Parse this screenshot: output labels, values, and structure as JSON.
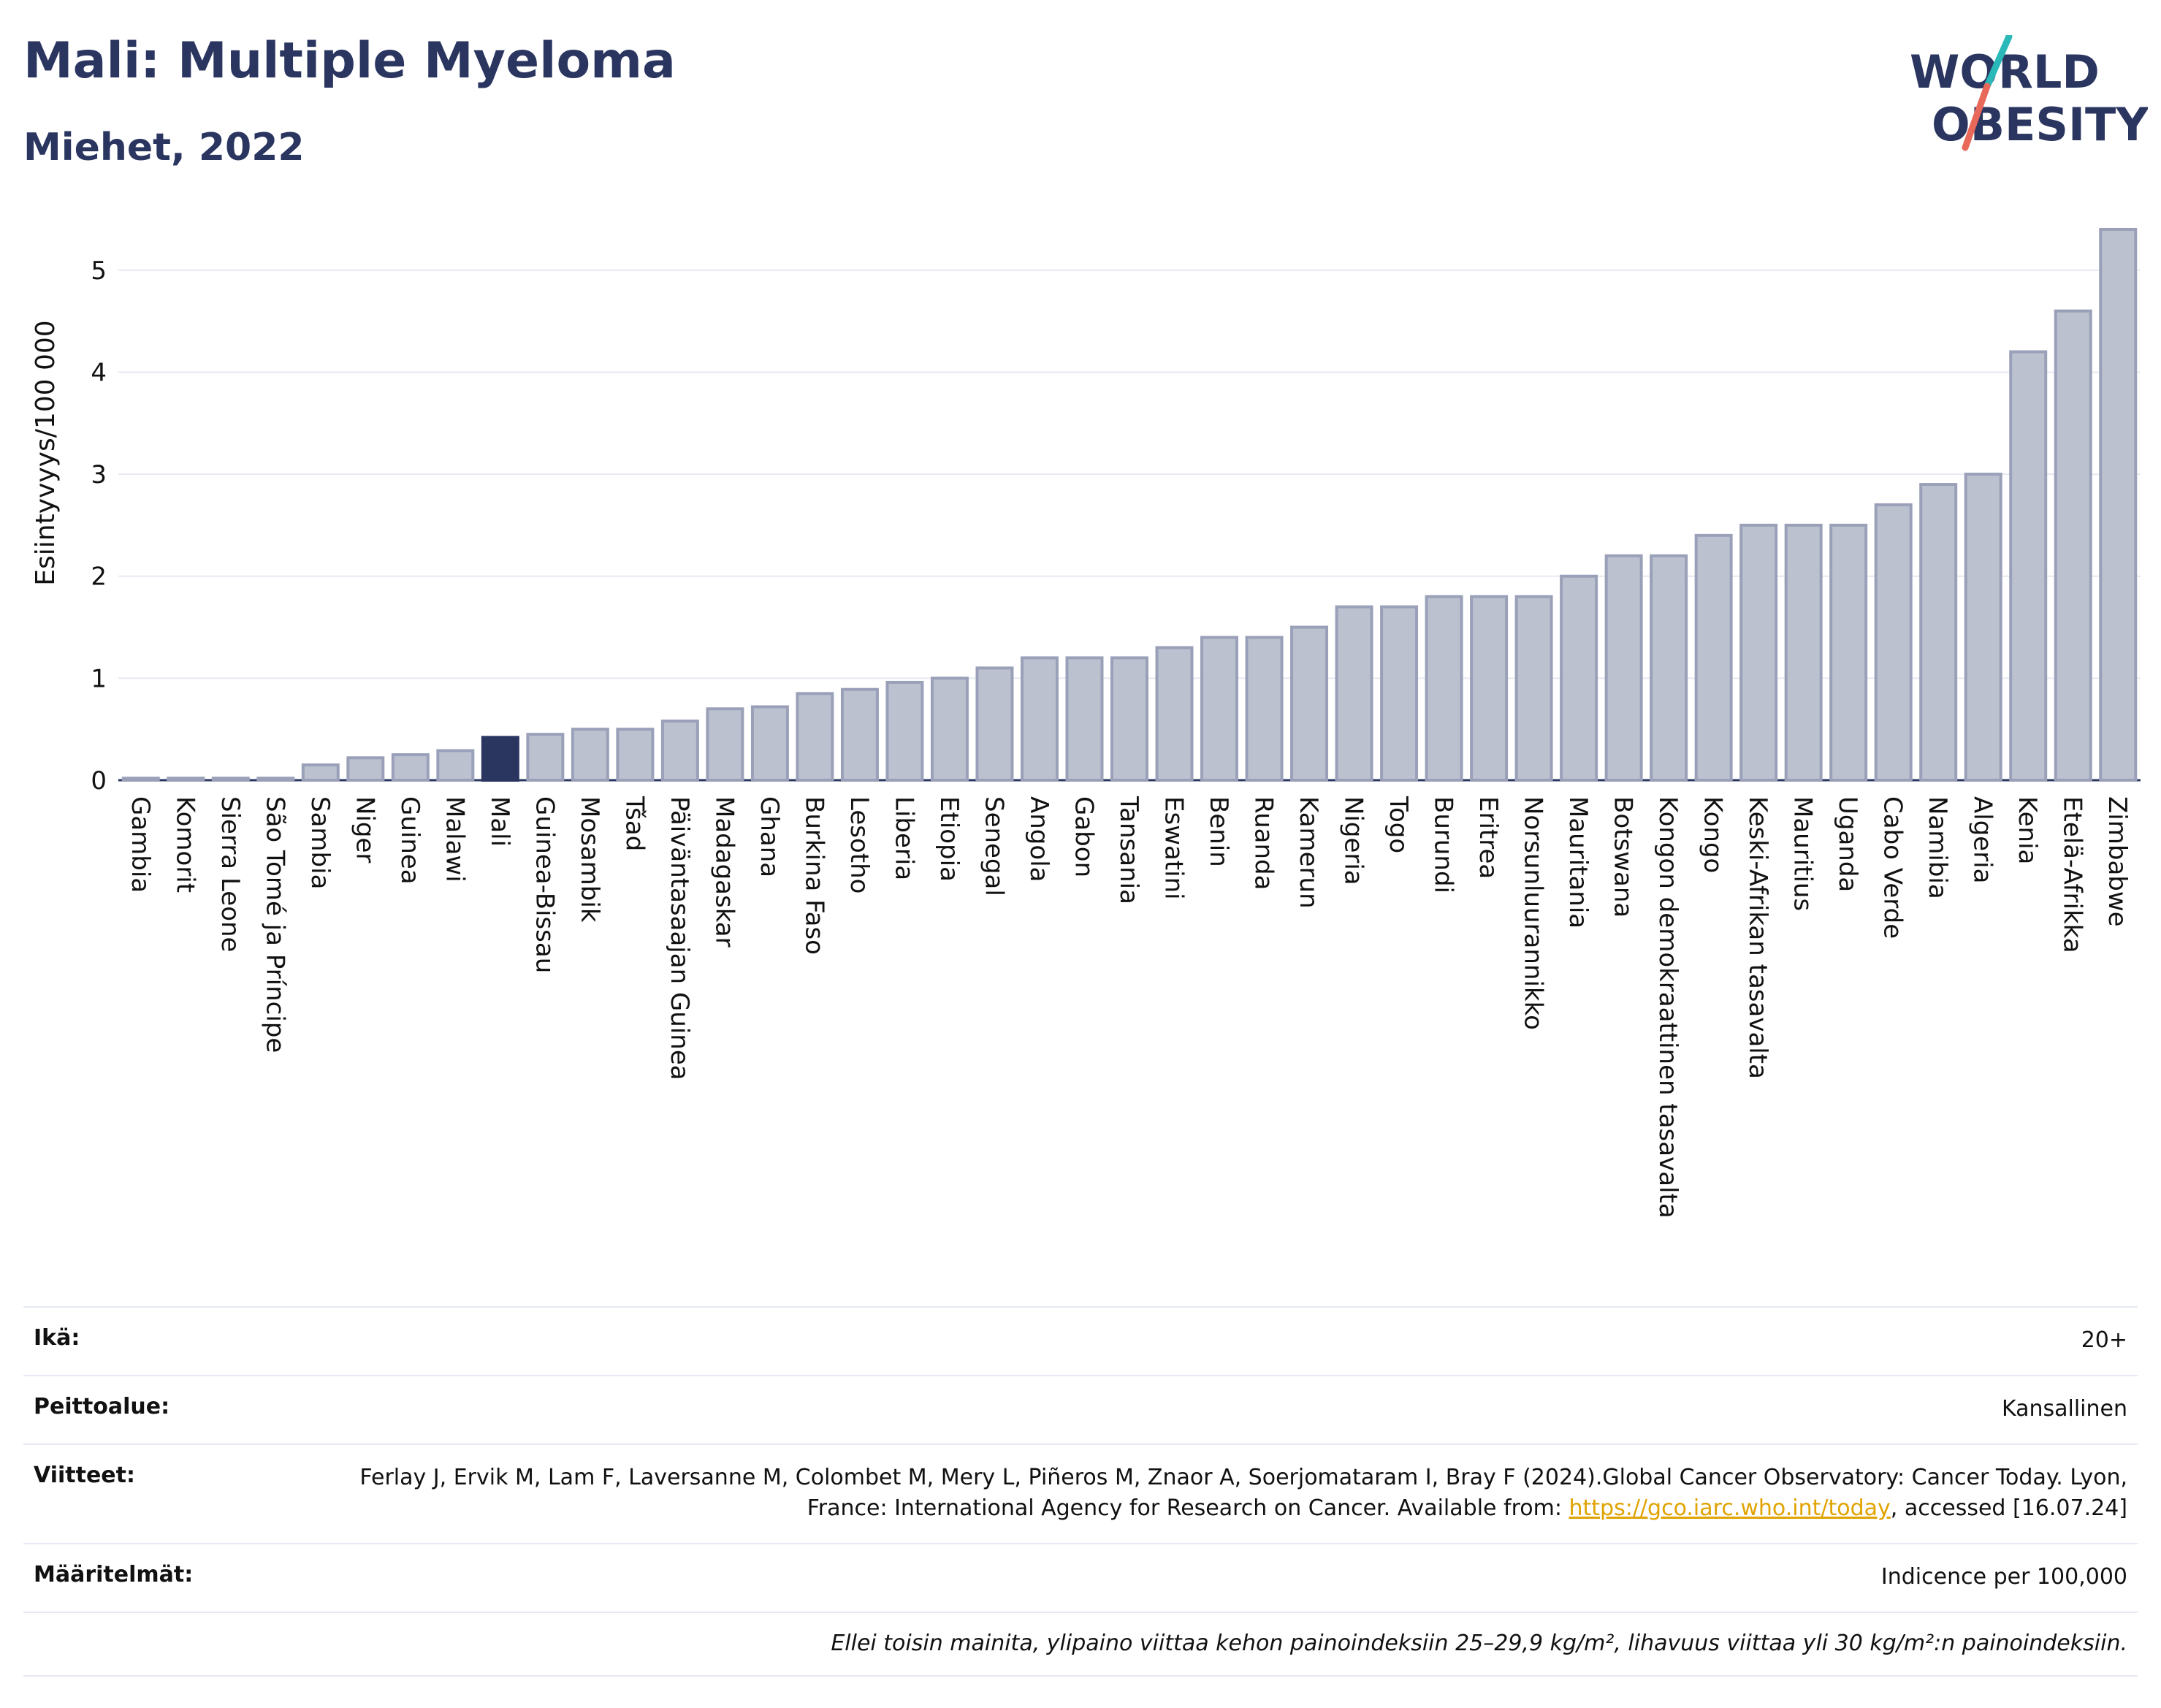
{
  "title": "Mali: Multiple Myeloma",
  "subtitle": "Miehet, 2022",
  "logo": {
    "line1": "WORLD",
    "line2": "OBESITY",
    "accent_colors": [
      "#2ab8b8",
      "#e8685a"
    ]
  },
  "chart_data": {
    "type": "bar",
    "ylabel": "Esiintyvyys/100 000",
    "xlabel": "",
    "ylim": [
      0,
      5.5
    ],
    "yticks": [
      0,
      1,
      2,
      3,
      4,
      5
    ],
    "highlight": "Mali",
    "colors": {
      "bar": "#bcc1d0",
      "bar_stroke": "#9aa0b8",
      "highlight": "#2a3560"
    },
    "grid": true,
    "categories": [
      "Gambia",
      "Komorit",
      "Sierra Leone",
      "São Tomé ja Príncipe",
      "Sambia",
      "Niger",
      "Guinea",
      "Malawi",
      "Mali",
      "Guinea-Bissau",
      "Mosambik",
      "Tšad",
      "Päiväntasaajan Guinea",
      "Madagaskar",
      "Ghana",
      "Burkina Faso",
      "Lesotho",
      "Liberia",
      "Etiopia",
      "Senegal",
      "Angola",
      "Gabon",
      "Tansania",
      "Eswatini",
      "Benin",
      "Ruanda",
      "Kamerun",
      "Nigeria",
      "Togo",
      "Burundi",
      "Eritrea",
      "Norsunluurannikko",
      "Mauritania",
      "Botswana",
      "Kongon demokraattinen tasavalta",
      "Kongo",
      "Keski-Afrikan tasavalta",
      "Mauritius",
      "Uganda",
      "Cabo Verde",
      "Namibia",
      "Algeria",
      "Kenia",
      "Etelä-Afrikka",
      "Zimbabwe"
    ],
    "values": [
      0.02,
      0.02,
      0.02,
      0.02,
      0.15,
      0.22,
      0.25,
      0.29,
      0.42,
      0.45,
      0.5,
      0.5,
      0.58,
      0.7,
      0.72,
      0.85,
      0.89,
      0.96,
      1.0,
      1.1,
      1.2,
      1.2,
      1.2,
      1.3,
      1.4,
      1.4,
      1.5,
      1.7,
      1.7,
      1.8,
      1.8,
      1.8,
      2.0,
      2.2,
      2.2,
      2.4,
      2.5,
      2.5,
      2.5,
      2.7,
      2.9,
      3.0,
      4.2,
      4.6,
      5.4
    ]
  },
  "info": {
    "age_label": "Ikä:",
    "age_value": "20+",
    "coverage_label": "Peittoalue:",
    "coverage_value": "Kansallinen",
    "references_label": "Viitteet:",
    "references_text": "Ferlay J, Ervik M, Lam F, Laversanne M, Colombet M, Mery L, Piñeros M, Znaor A, Soerjomataram I, Bray F (2024).Global Cancer Observatory: Cancer Today. Lyon, France: International Agency for Research on Cancer. Available from:",
    "references_link": "https://gco.iarc.who.int/today",
    "references_tail": ", accessed [16.07.24]",
    "definitions_label": "Määritelmät:",
    "definitions_value": "Indicence per 100,000",
    "footnote": "Ellei toisin mainita, ylipaino viittaa kehon painoindeksiin 25–29,9 kg/m², lihavuus viittaa yli 30 kg/m²:n painoindeksiin."
  }
}
